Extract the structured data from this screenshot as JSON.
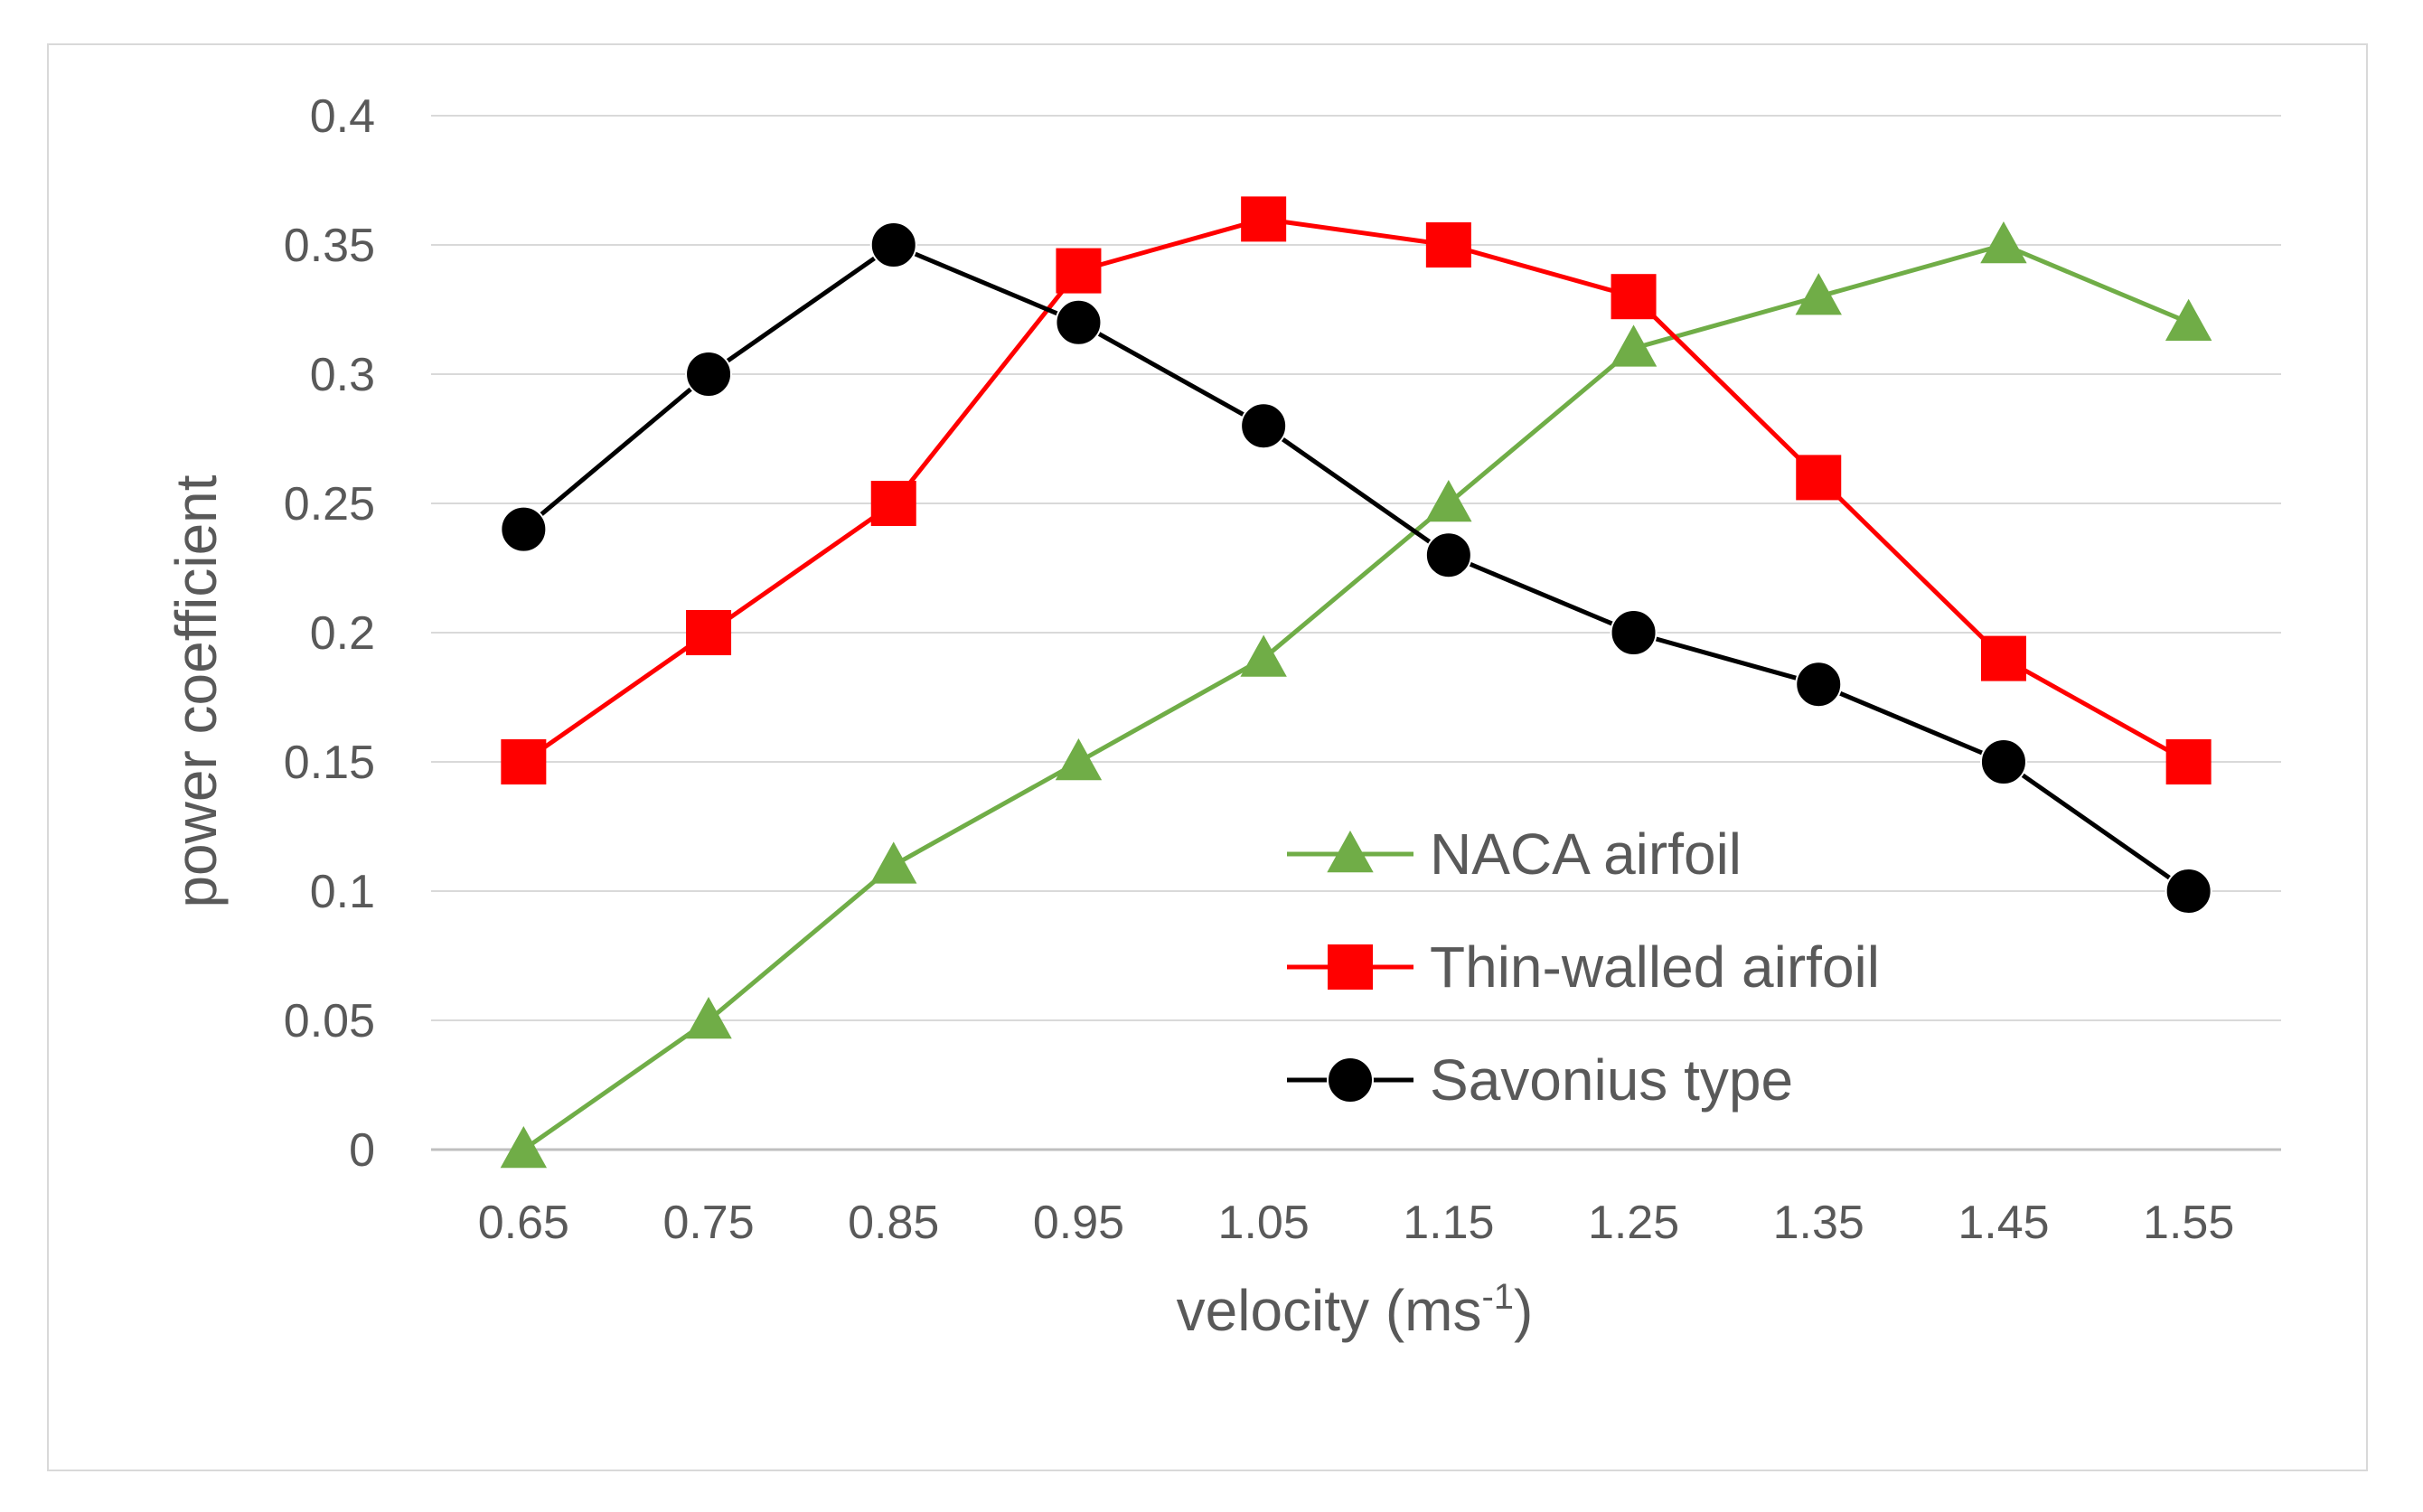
{
  "chart_data": {
    "type": "line",
    "title": "",
    "xlabel": "velocity (ms",
    "xlabel_superscript": "-1",
    "xlabel_close": ")",
    "ylabel": "power coefficient",
    "categories": [
      "0.65",
      "0.75",
      "0.85",
      "0.95",
      "1.05",
      "1.15",
      "1.25",
      "1.35",
      "1.45",
      "1.55"
    ],
    "ylim": [
      0,
      0.4
    ],
    "yticks": [
      "0",
      "0.05",
      "0.1",
      "0.15",
      "0.2",
      "0.25",
      "0.3",
      "0.35",
      "0.4"
    ],
    "grid": true,
    "legend_position": "lower-right",
    "series": [
      {
        "name": "NACA airfoil",
        "marker": "triangle",
        "color": "#70ad47",
        "values": [
          0,
          0.05,
          0.11,
          0.15,
          0.19,
          0.25,
          0.31,
          0.33,
          0.35,
          0.32
        ]
      },
      {
        "name": "Thin-walled airfoil",
        "marker": "square",
        "color": "#ff0000",
        "values": [
          0.15,
          0.2,
          0.25,
          0.34,
          0.36,
          0.35,
          0.33,
          0.26,
          0.19,
          0.15
        ]
      },
      {
        "name": "Savonius type",
        "marker": "circle",
        "color": "#000000",
        "values": [
          0.24,
          0.3,
          0.35,
          0.32,
          0.28,
          0.23,
          0.2,
          0.18,
          0.15,
          0.1
        ]
      }
    ]
  },
  "colors": {
    "grid": "#d9d9d9",
    "axis": "#bfbfbf",
    "text": "#595959",
    "frame": "#d9d9d9"
  }
}
